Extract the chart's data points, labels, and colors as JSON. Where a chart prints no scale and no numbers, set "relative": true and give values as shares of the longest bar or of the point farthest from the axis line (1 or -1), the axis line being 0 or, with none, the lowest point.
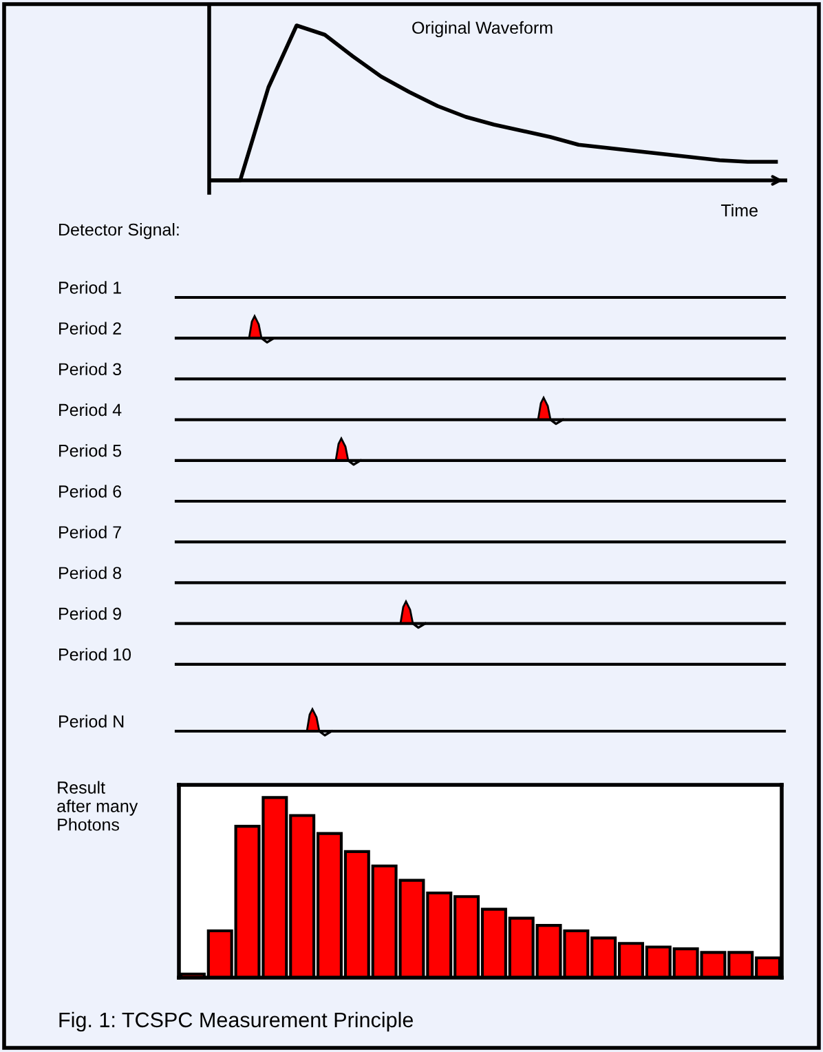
{
  "chart_data": [
    {
      "type": "line",
      "title": "Original Waveform",
      "xlabel": "Time",
      "relative": true,
      "color": "#000000",
      "categories": [
        null,
        null,
        null,
        null,
        null,
        null,
        null,
        null,
        null,
        null,
        null,
        null,
        null,
        null,
        null,
        null,
        null,
        null,
        null,
        null,
        null
      ],
      "values": [
        0,
        0,
        0.6,
        1,
        0.94,
        0.8,
        0.67,
        0.57,
        0.48,
        0.41,
        0.36,
        0.32,
        0.28,
        0.23,
        0.21,
        0.19,
        0.17,
        0.15,
        0.13,
        0.12,
        0.12
      ]
    },
    {
      "type": "other",
      "title": "Detector Signal:",
      "categories": [
        "Period 1",
        "Period 2",
        "Period 3",
        "Period 4",
        "Period 5",
        "Period 6",
        "Period 7",
        "Period 8",
        "Period 9",
        "Period 10",
        "Period N"
      ]
    },
    {
      "type": "bar",
      "ylabel": "Result\nafter many\nPhotons",
      "relative": true,
      "color": "#ff0000",
      "categories": [
        null,
        null,
        null,
        null,
        null,
        null,
        null,
        null,
        null,
        null,
        null,
        null,
        null,
        null,
        null,
        null,
        null,
        null,
        null,
        null,
        null,
        null
      ],
      "values": [
        0.02,
        0.26,
        0.84,
        1,
        0.9,
        0.8,
        0.7,
        0.62,
        0.54,
        0.47,
        0.45,
        0.38,
        0.33,
        0.29,
        0.26,
        0.22,
        0.19,
        0.17,
        0.16,
        0.14,
        0.14,
        0.11
      ],
      "annotations": [
        "Fig. 1: TCSPC Measurement Principle"
      ]
    }
  ]
}
